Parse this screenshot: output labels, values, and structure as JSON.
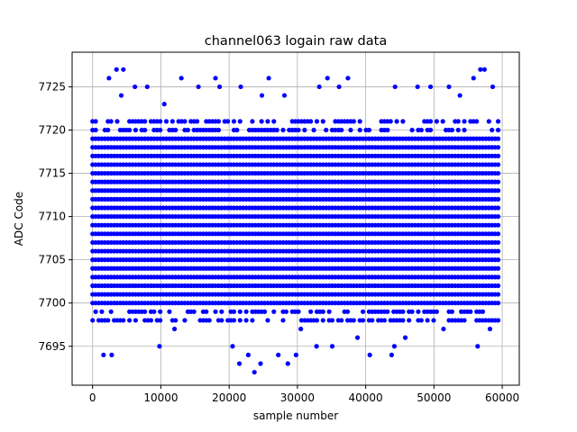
{
  "chart_data": {
    "type": "scatter",
    "title": "channel063 logain raw data",
    "xlabel": "sample number",
    "ylabel": "ADC Code",
    "xlim": [
      -3000,
      62500
    ],
    "ylim": [
      7690.5,
      7729.0
    ],
    "xticks": [
      0,
      10000,
      20000,
      30000,
      40000,
      50000,
      60000
    ],
    "yticks": [
      7695,
      7700,
      7705,
      7710,
      7715,
      7720,
      7725
    ],
    "grid": true,
    "legend": "none",
    "marker_color": "#0000ff",
    "series": [
      {
        "x_range": [
          0,
          59500
        ],
        "dense_levels": [
          7698,
          7699,
          7700,
          7701,
          7702,
          7703,
          7704,
          7705,
          7706,
          7707,
          7708,
          7709,
          7710,
          7711,
          7712,
          7713,
          7714,
          7715,
          7716,
          7717,
          7718,
          7719,
          7720,
          7721
        ],
        "sparse_points": [
          {
            "x": 1600,
            "y": 7694
          },
          {
            "x": 2800,
            "y": 7694
          },
          {
            "x": 2400,
            "y": 7726
          },
          {
            "x": 3500,
            "y": 7727
          },
          {
            "x": 4500,
            "y": 7727
          },
          {
            "x": 4200,
            "y": 7724
          },
          {
            "x": 6200,
            "y": 7725
          },
          {
            "x": 8000,
            "y": 7725
          },
          {
            "x": 9800,
            "y": 7695
          },
          {
            "x": 10500,
            "y": 7723
          },
          {
            "x": 13000,
            "y": 7726
          },
          {
            "x": 15500,
            "y": 7725
          },
          {
            "x": 18000,
            "y": 7726
          },
          {
            "x": 18600,
            "y": 7725
          },
          {
            "x": 20500,
            "y": 7695
          },
          {
            "x": 21500,
            "y": 7693
          },
          {
            "x": 22800,
            "y": 7694
          },
          {
            "x": 23700,
            "y": 7692
          },
          {
            "x": 24600,
            "y": 7693
          },
          {
            "x": 21700,
            "y": 7725
          },
          {
            "x": 24800,
            "y": 7724
          },
          {
            "x": 25800,
            "y": 7726
          },
          {
            "x": 27200,
            "y": 7694
          },
          {
            "x": 28100,
            "y": 7724
          },
          {
            "x": 28600,
            "y": 7693
          },
          {
            "x": 29800,
            "y": 7694
          },
          {
            "x": 32800,
            "y": 7695
          },
          {
            "x": 33200,
            "y": 7725
          },
          {
            "x": 34400,
            "y": 7726
          },
          {
            "x": 35100,
            "y": 7695
          },
          {
            "x": 36100,
            "y": 7725
          },
          {
            "x": 37400,
            "y": 7726
          },
          {
            "x": 38800,
            "y": 7696
          },
          {
            "x": 40600,
            "y": 7694
          },
          {
            "x": 43800,
            "y": 7694
          },
          {
            "x": 44200,
            "y": 7695
          },
          {
            "x": 44300,
            "y": 7725
          },
          {
            "x": 45800,
            "y": 7696
          },
          {
            "x": 47600,
            "y": 7725
          },
          {
            "x": 49500,
            "y": 7725
          },
          {
            "x": 52200,
            "y": 7725
          },
          {
            "x": 56400,
            "y": 7695
          },
          {
            "x": 56800,
            "y": 7727
          },
          {
            "x": 57400,
            "y": 7727
          },
          {
            "x": 55800,
            "y": 7726
          },
          {
            "x": 58600,
            "y": 7725
          },
          {
            "x": 53800,
            "y": 7724
          },
          {
            "x": 51400,
            "y": 7697
          },
          {
            "x": 58200,
            "y": 7697
          },
          {
            "x": 12000,
            "y": 7697
          },
          {
            "x": 30500,
            "y": 7697
          }
        ]
      }
    ]
  }
}
